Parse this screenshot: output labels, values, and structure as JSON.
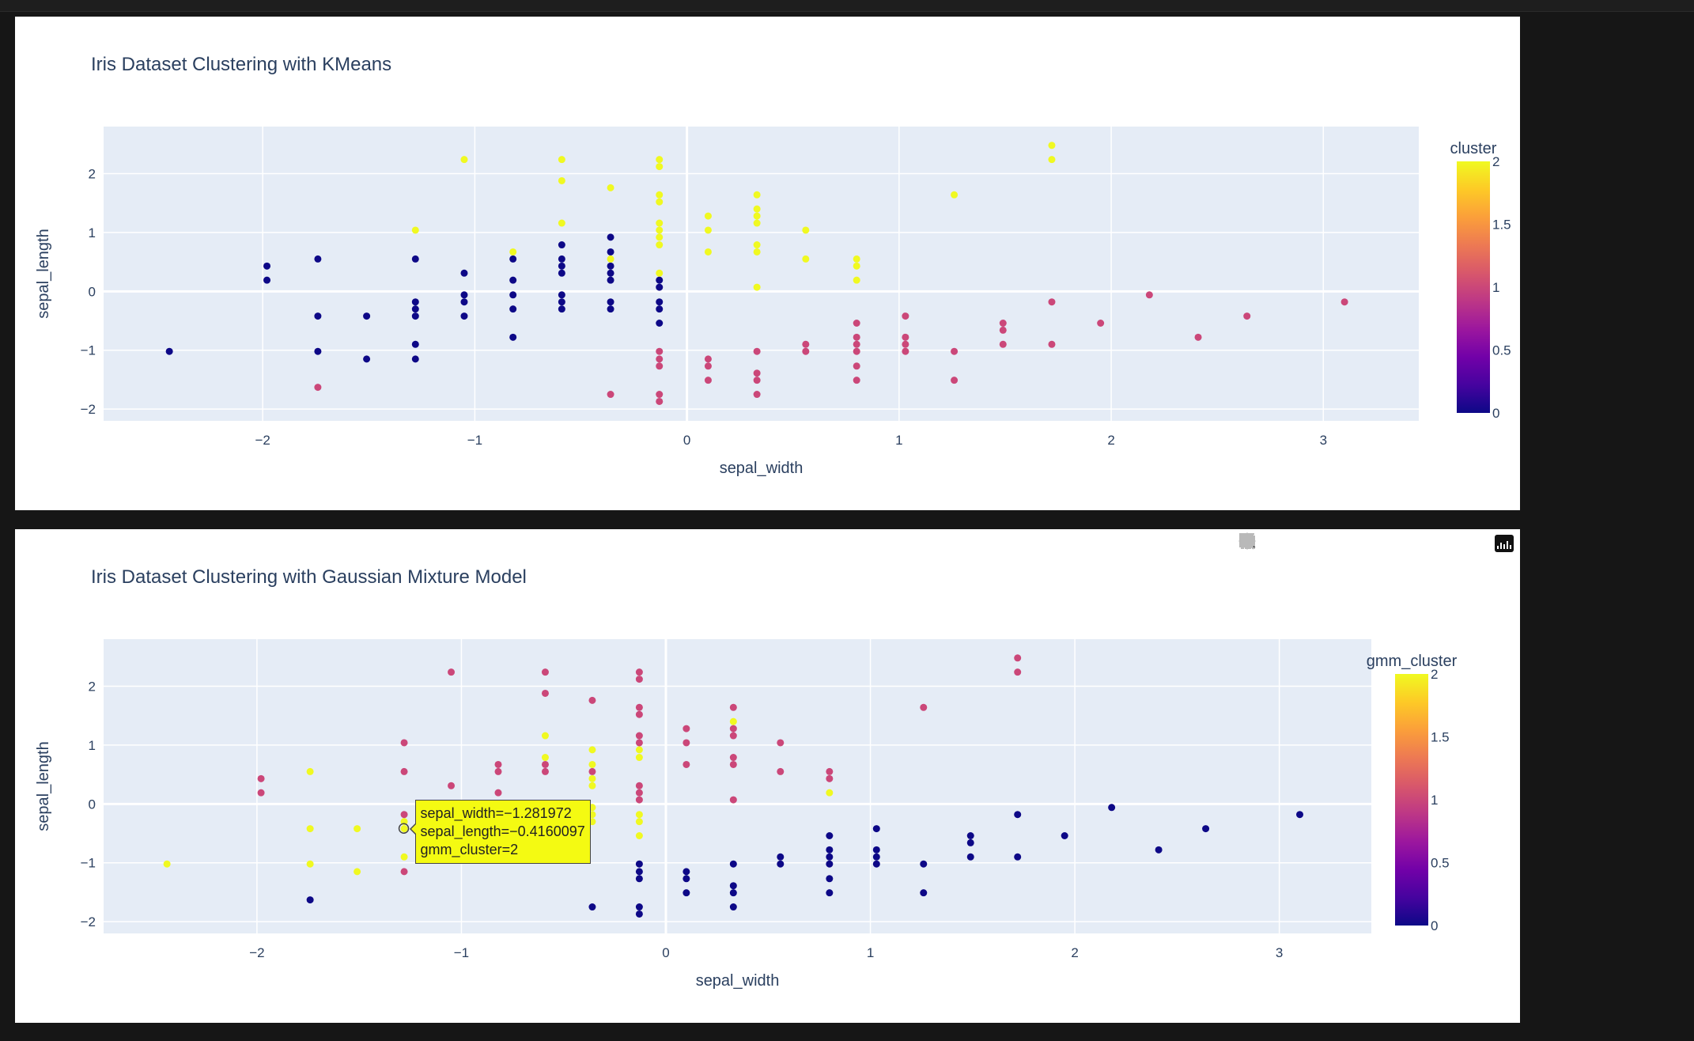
{
  "chart_data": [
    {
      "type": "scatter",
      "title": "Iris Dataset Clustering with KMeans",
      "xlabel": "sepal_width",
      "ylabel": "sepal_length",
      "xlim": [
        -2.75,
        3.45
      ],
      "ylim": [
        -2.2,
        2.8
      ],
      "xticks": [
        -2,
        -1,
        0,
        1,
        2,
        3
      ],
      "xtick_labels": [
        "−2",
        "−1",
        "0",
        "1",
        "2",
        "3"
      ],
      "yticks": [
        -2,
        -1,
        0,
        1,
        2
      ],
      "ytick_labels": [
        "−2",
        "−1",
        "0",
        "1",
        "2"
      ],
      "grid": true,
      "color_var": "cluster",
      "colorbar": {
        "title": "cluster",
        "ticks": [
          0,
          0.5,
          1,
          1.5,
          2
        ],
        "tick_labels": [
          "0",
          "0.5",
          "1",
          "1.5",
          "2"
        ],
        "range": [
          0,
          2
        ],
        "colors": [
          "#0d0887",
          "#46039f",
          "#7201a8",
          "#9c179e",
          "#bd3786",
          "#d8576b",
          "#ed7953",
          "#fb9f3a",
          "#fdca26",
          "#f0f921"
        ]
      },
      "points": [
        [
          -2.44,
          -1.02,
          0
        ],
        [
          -1.98,
          0.43,
          0
        ],
        [
          -1.98,
          0.19,
          0
        ],
        [
          -1.74,
          0.55,
          0
        ],
        [
          -1.74,
          -0.42,
          0
        ],
        [
          -1.74,
          -1.02,
          0
        ],
        [
          -1.51,
          -0.42,
          0
        ],
        [
          -1.51,
          -1.15,
          0
        ],
        [
          -1.28,
          0.55,
          0
        ],
        [
          -1.28,
          -0.18,
          0
        ],
        [
          -1.28,
          -0.3,
          0
        ],
        [
          -1.28,
          -0.42,
          0
        ],
        [
          -1.28,
          -0.9,
          0
        ],
        [
          -1.28,
          -1.15,
          0
        ],
        [
          -1.05,
          0.31,
          0
        ],
        [
          -1.05,
          -0.06,
          0
        ],
        [
          -1.05,
          -0.18,
          0
        ],
        [
          -1.05,
          -0.42,
          0
        ],
        [
          -0.82,
          0.55,
          0
        ],
        [
          -0.82,
          0.19,
          0
        ],
        [
          -0.82,
          -0.06,
          0
        ],
        [
          -0.82,
          -0.3,
          0
        ],
        [
          -0.82,
          -0.78,
          0
        ],
        [
          -0.59,
          0.79,
          0
        ],
        [
          -0.59,
          0.55,
          0
        ],
        [
          -0.59,
          0.43,
          0
        ],
        [
          -0.59,
          0.31,
          0
        ],
        [
          -0.59,
          -0.06,
          0
        ],
        [
          -0.59,
          -0.18,
          0
        ],
        [
          -0.59,
          -0.3,
          0
        ],
        [
          -0.36,
          0.92,
          0
        ],
        [
          -0.36,
          0.67,
          0
        ],
        [
          -0.36,
          0.43,
          0
        ],
        [
          -0.36,
          0.31,
          0
        ],
        [
          -0.36,
          0.19,
          0
        ],
        [
          -0.36,
          -0.18,
          0
        ],
        [
          -0.36,
          -0.3,
          0
        ],
        [
          -0.13,
          0.19,
          0
        ],
        [
          -0.13,
          0.07,
          0
        ],
        [
          -0.13,
          -0.18,
          0
        ],
        [
          -0.13,
          -0.3,
          0
        ],
        [
          -0.13,
          -0.54,
          0
        ],
        [
          -1.74,
          -1.63,
          1
        ],
        [
          -0.36,
          -1.75,
          1
        ],
        [
          -0.13,
          -1.02,
          1
        ],
        [
          -0.13,
          -1.15,
          1
        ],
        [
          -0.13,
          -1.27,
          1
        ],
        [
          -0.13,
          -1.75,
          1
        ],
        [
          -0.13,
          -1.87,
          1
        ],
        [
          0.1,
          -1.15,
          1
        ],
        [
          0.1,
          -1.27,
          1
        ],
        [
          0.1,
          -1.51,
          1
        ],
        [
          0.33,
          -1.02,
          1
        ],
        [
          0.33,
          -1.39,
          1
        ],
        [
          0.33,
          -1.51,
          1
        ],
        [
          0.33,
          -1.75,
          1
        ],
        [
          0.56,
          -0.9,
          1
        ],
        [
          0.56,
          -1.02,
          1
        ],
        [
          0.8,
          -0.54,
          1
        ],
        [
          0.8,
          -0.78,
          1
        ],
        [
          0.8,
          -0.9,
          1
        ],
        [
          0.8,
          -1.02,
          1
        ],
        [
          0.8,
          -1.27,
          1
        ],
        [
          0.8,
          -1.51,
          1
        ],
        [
          1.03,
          -0.42,
          1
        ],
        [
          1.03,
          -0.78,
          1
        ],
        [
          1.03,
          -0.9,
          1
        ],
        [
          1.03,
          -1.02,
          1
        ],
        [
          1.26,
          -1.02,
          1
        ],
        [
          1.26,
          -1.51,
          1
        ],
        [
          1.49,
          -0.54,
          1
        ],
        [
          1.49,
          -0.66,
          1
        ],
        [
          1.49,
          -0.9,
          1
        ],
        [
          1.72,
          -0.18,
          1
        ],
        [
          1.72,
          -0.9,
          1
        ],
        [
          1.95,
          -0.54,
          1
        ],
        [
          2.18,
          -0.06,
          1
        ],
        [
          2.41,
          -0.78,
          1
        ],
        [
          2.64,
          -0.42,
          1
        ],
        [
          3.1,
          -0.18,
          1
        ],
        [
          -1.28,
          1.04,
          2
        ],
        [
          -1.05,
          2.24,
          2
        ],
        [
          -0.82,
          0.67,
          2
        ],
        [
          -0.59,
          2.24,
          2
        ],
        [
          -0.59,
          1.88,
          2
        ],
        [
          -0.59,
          1.16,
          2
        ],
        [
          -0.36,
          1.76,
          2
        ],
        [
          -0.36,
          0.55,
          2
        ],
        [
          -0.13,
          2.24,
          2
        ],
        [
          -0.13,
          2.12,
          2
        ],
        [
          -0.13,
          1.64,
          2
        ],
        [
          -0.13,
          1.52,
          2
        ],
        [
          -0.13,
          1.16,
          2
        ],
        [
          -0.13,
          1.04,
          2
        ],
        [
          -0.13,
          0.92,
          2
        ],
        [
          -0.13,
          0.79,
          2
        ],
        [
          -0.13,
          0.31,
          2
        ],
        [
          0.1,
          1.28,
          2
        ],
        [
          0.1,
          1.04,
          2
        ],
        [
          0.1,
          0.67,
          2
        ],
        [
          0.33,
          1.64,
          2
        ],
        [
          0.33,
          1.4,
          2
        ],
        [
          0.33,
          1.28,
          2
        ],
        [
          0.33,
          1.16,
          2
        ],
        [
          0.33,
          0.79,
          2
        ],
        [
          0.33,
          0.67,
          2
        ],
        [
          0.33,
          0.07,
          2
        ],
        [
          0.56,
          1.04,
          2
        ],
        [
          0.56,
          0.55,
          2
        ],
        [
          0.8,
          0.55,
          2
        ],
        [
          0.8,
          0.43,
          2
        ],
        [
          0.8,
          0.19,
          2
        ],
        [
          1.26,
          1.64,
          2
        ],
        [
          1.72,
          2.48,
          2
        ],
        [
          1.72,
          2.24,
          2
        ]
      ]
    },
    {
      "type": "scatter",
      "title": "Iris Dataset Clustering with Gaussian Mixture Model",
      "xlabel": "sepal_width",
      "ylabel": "sepal_length",
      "xlim": [
        -2.75,
        3.45
      ],
      "ylim": [
        -2.2,
        2.8
      ],
      "xticks": [
        -2,
        -1,
        0,
        1,
        2,
        3
      ],
      "xtick_labels": [
        "−2",
        "−1",
        "0",
        "1",
        "2",
        "3"
      ],
      "yticks": [
        -2,
        -1,
        0,
        1,
        2
      ],
      "ytick_labels": [
        "−2",
        "−1",
        "0",
        "1",
        "2"
      ],
      "grid": true,
      "color_var": "gmm_cluster",
      "colorbar": {
        "title": "gmm_cluster",
        "ticks": [
          0,
          0.5,
          1,
          1.5,
          2
        ],
        "tick_labels": [
          "0",
          "0.5",
          "1",
          "1.5",
          "2"
        ],
        "range": [
          0,
          2
        ],
        "colors": [
          "#0d0887",
          "#46039f",
          "#7201a8",
          "#9c179e",
          "#bd3786",
          "#d8576b",
          "#ed7953",
          "#fb9f3a",
          "#fdca26",
          "#f0f921"
        ]
      },
      "points": [
        [
          -2.44,
          -1.02,
          2
        ],
        [
          -1.74,
          0.55,
          2
        ],
        [
          -1.74,
          -0.42,
          2
        ],
        [
          -1.74,
          -1.02,
          2
        ],
        [
          -1.51,
          -0.42,
          2
        ],
        [
          -1.51,
          -1.15,
          2
        ],
        [
          -1.28,
          -0.3,
          2
        ],
        [
          -1.28,
          -0.42,
          2
        ],
        [
          -1.28,
          -0.9,
          2
        ],
        [
          -0.59,
          1.16,
          2
        ],
        [
          -0.59,
          0.79,
          2
        ],
        [
          -0.36,
          0.92,
          2
        ],
        [
          -0.36,
          0.67,
          2
        ],
        [
          -0.36,
          0.43,
          2
        ],
        [
          -0.36,
          0.31,
          2
        ],
        [
          -0.36,
          -0.06,
          2
        ],
        [
          -0.36,
          -0.18,
          2
        ],
        [
          -0.36,
          -0.3,
          2
        ],
        [
          -0.13,
          0.92,
          2
        ],
        [
          -0.13,
          0.79,
          2
        ],
        [
          -0.13,
          -0.18,
          2
        ],
        [
          -0.13,
          -0.3,
          2
        ],
        [
          -0.13,
          -0.54,
          2
        ],
        [
          0.33,
          1.4,
          2
        ],
        [
          0.8,
          0.19,
          2
        ],
        [
          -1.98,
          0.43,
          1
        ],
        [
          -1.98,
          0.19,
          1
        ],
        [
          -1.28,
          1.04,
          1
        ],
        [
          -1.28,
          0.55,
          1
        ],
        [
          -1.28,
          -0.18,
          1
        ],
        [
          -1.28,
          -1.15,
          1
        ],
        [
          -1.05,
          2.24,
          1
        ],
        [
          -1.05,
          0.31,
          1
        ],
        [
          -0.82,
          0.67,
          1
        ],
        [
          -0.82,
          0.55,
          1
        ],
        [
          -0.82,
          0.19,
          1
        ],
        [
          -0.59,
          2.24,
          1
        ],
        [
          -0.59,
          1.88,
          1
        ],
        [
          -0.59,
          0.67,
          1
        ],
        [
          -0.59,
          0.55,
          1
        ],
        [
          -0.36,
          1.76,
          1
        ],
        [
          -0.36,
          0.55,
          1
        ],
        [
          -0.13,
          2.24,
          1
        ],
        [
          -0.13,
          2.12,
          1
        ],
        [
          -0.13,
          1.64,
          1
        ],
        [
          -0.13,
          1.52,
          1
        ],
        [
          -0.13,
          1.16,
          1
        ],
        [
          -0.13,
          1.04,
          1
        ],
        [
          -0.13,
          0.31,
          1
        ],
        [
          -0.13,
          0.19,
          1
        ],
        [
          -0.13,
          0.07,
          1
        ],
        [
          0.1,
          1.28,
          1
        ],
        [
          0.1,
          1.04,
          1
        ],
        [
          0.1,
          0.67,
          1
        ],
        [
          0.33,
          1.64,
          1
        ],
        [
          0.33,
          1.28,
          1
        ],
        [
          0.33,
          1.16,
          1
        ],
        [
          0.33,
          0.79,
          1
        ],
        [
          0.33,
          0.67,
          1
        ],
        [
          0.33,
          0.07,
          1
        ],
        [
          0.56,
          1.04,
          1
        ],
        [
          0.56,
          0.55,
          1
        ],
        [
          0.8,
          0.55,
          1
        ],
        [
          0.8,
          0.43,
          1
        ],
        [
          1.26,
          1.64,
          1
        ],
        [
          1.72,
          2.48,
          1
        ],
        [
          1.72,
          2.24,
          1
        ],
        [
          -1.74,
          -1.63,
          0
        ],
        [
          -0.36,
          -1.75,
          0
        ],
        [
          -0.13,
          -1.02,
          0
        ],
        [
          -0.13,
          -1.15,
          0
        ],
        [
          -0.13,
          -1.27,
          0
        ],
        [
          -0.13,
          -1.75,
          0
        ],
        [
          -0.13,
          -1.87,
          0
        ],
        [
          0.1,
          -1.15,
          0
        ],
        [
          0.1,
          -1.27,
          0
        ],
        [
          0.1,
          -1.51,
          0
        ],
        [
          0.33,
          -1.02,
          0
        ],
        [
          0.33,
          -1.39,
          0
        ],
        [
          0.33,
          -1.51,
          0
        ],
        [
          0.33,
          -1.75,
          0
        ],
        [
          0.56,
          -0.9,
          0
        ],
        [
          0.56,
          -1.02,
          0
        ],
        [
          0.8,
          -0.54,
          0
        ],
        [
          0.8,
          -0.78,
          0
        ],
        [
          0.8,
          -0.9,
          0
        ],
        [
          0.8,
          -1.02,
          0
        ],
        [
          0.8,
          -1.27,
          0
        ],
        [
          0.8,
          -1.51,
          0
        ],
        [
          1.03,
          -0.42,
          0
        ],
        [
          1.03,
          -0.78,
          0
        ],
        [
          1.03,
          -0.9,
          0
        ],
        [
          1.03,
          -1.02,
          0
        ],
        [
          1.26,
          -1.02,
          0
        ],
        [
          1.26,
          -1.51,
          0
        ],
        [
          1.49,
          -0.54,
          0
        ],
        [
          1.49,
          -0.66,
          0
        ],
        [
          1.49,
          -0.9,
          0
        ],
        [
          1.72,
          -0.18,
          0
        ],
        [
          1.72,
          -0.9,
          0
        ],
        [
          1.95,
          -0.54,
          0
        ],
        [
          2.18,
          -0.06,
          0
        ],
        [
          2.41,
          -0.78,
          0
        ],
        [
          2.64,
          -0.42,
          0
        ],
        [
          3.1,
          -0.18,
          0
        ]
      ],
      "hover": {
        "point": [
          -1.281972,
          -0.4160097
        ],
        "lines": [
          "sepal_width=−1.281972",
          "sepal_length=−0.4160097",
          "gmm_cluster=2"
        ],
        "color": "#f4fa12"
      }
    }
  ],
  "modebar": {
    "icons": [
      "camera-icon",
      "zoom-icon",
      "pan-icon",
      "box-select-icon",
      "lasso-select-icon",
      "zoom-in-icon",
      "zoom-out-icon",
      "autoscale-icon",
      "reset-axes-icon",
      "plotly-logo-icon"
    ]
  }
}
